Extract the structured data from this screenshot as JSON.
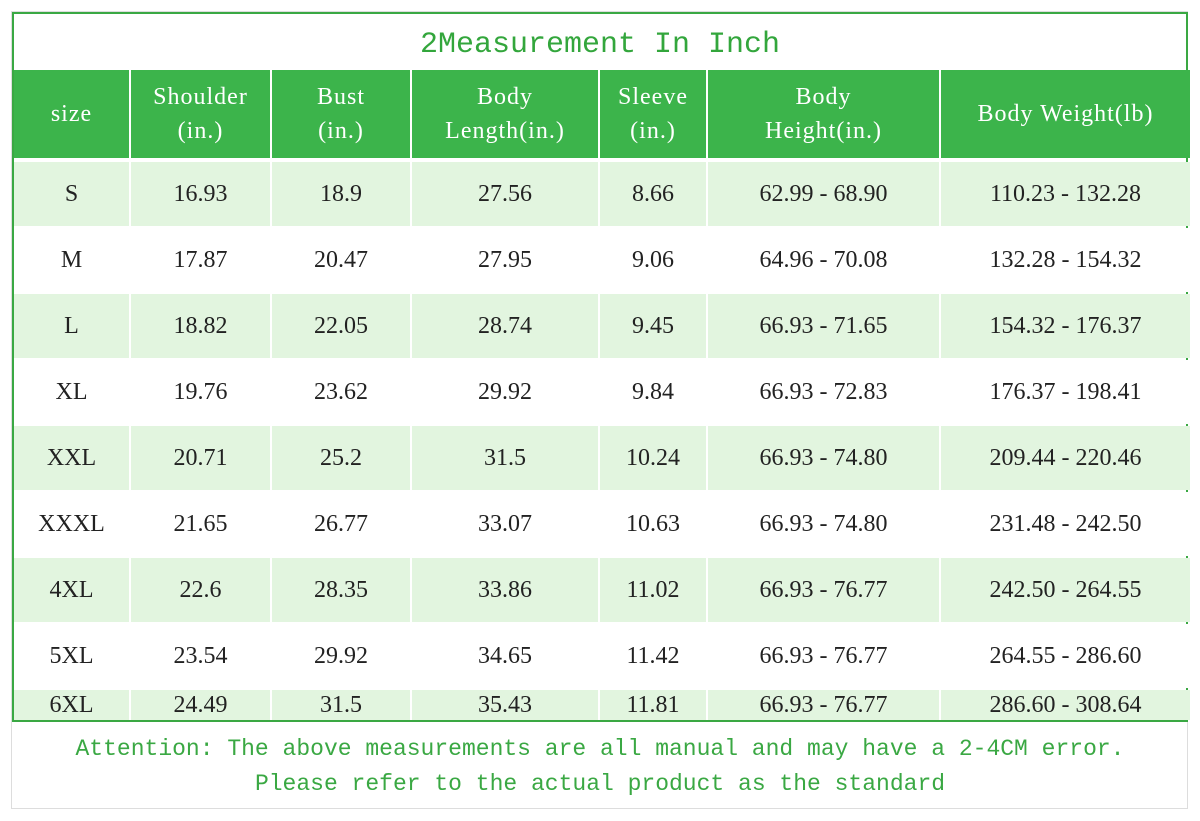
{
  "title": "2Measurement In Inch",
  "table": {
    "header": [
      "size",
      "Shoulder\n(in.)",
      "Bust\n(in.)",
      "Body\nLength(in.)",
      "Sleeve\n(in.)",
      "Body\nHeight(in.)",
      "Body Weight(lb)"
    ],
    "rows": [
      [
        "S",
        "16.93",
        "18.9",
        "27.56",
        "8.66",
        "62.99 - 68.90",
        "110.23 - 132.28"
      ],
      [
        "M",
        "17.87",
        "20.47",
        "27.95",
        "9.06",
        "64.96 - 70.08",
        "132.28 - 154.32"
      ],
      [
        "L",
        "18.82",
        "22.05",
        "28.74",
        "9.45",
        "66.93 - 71.65",
        "154.32 - 176.37"
      ],
      [
        "XL",
        "19.76",
        "23.62",
        "29.92",
        "9.84",
        "66.93 - 72.83",
        "176.37 - 198.41"
      ],
      [
        "XXL",
        "20.71",
        "25.2",
        "31.5",
        "10.24",
        "66.93 - 74.80",
        "209.44 - 220.46"
      ],
      [
        "XXXL",
        "21.65",
        "26.77",
        "33.07",
        "10.63",
        "66.93 - 74.80",
        "231.48 - 242.50"
      ],
      [
        "4XL",
        "22.6",
        "28.35",
        "33.86",
        "11.02",
        "66.93 - 76.77",
        "242.50 - 264.55"
      ],
      [
        "5XL",
        "23.54",
        "29.92",
        "34.65",
        "11.42",
        "66.93 - 76.77",
        "264.55 - 286.60"
      ],
      [
        "6XL",
        "24.49",
        "31.5",
        "35.43",
        "11.81",
        "66.93 - 76.77",
        "286.60 - 308.64"
      ]
    ]
  },
  "notes": [
    "Attention: The above measurements are all manual and may have a 2-4CM error.",
    "Please refer to the actual product as the standard"
  ]
}
